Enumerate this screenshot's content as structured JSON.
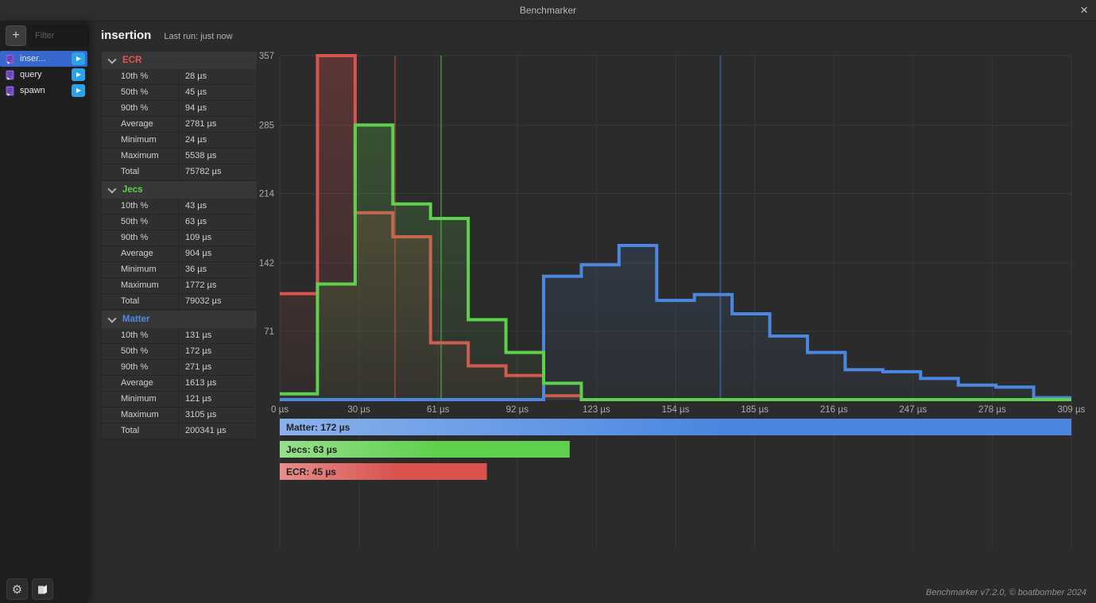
{
  "window": {
    "title": "Benchmarker",
    "close_glyph": "×"
  },
  "sidebar": {
    "add_label": "+",
    "filter_placeholder": "Filter",
    "items": [
      {
        "label": "inser...",
        "selected": true
      },
      {
        "label": "query",
        "selected": false
      },
      {
        "label": "spawn",
        "selected": false
      }
    ]
  },
  "header": {
    "title": "insertion",
    "last_run": "Last run: just now"
  },
  "stats": {
    "groups": [
      {
        "name": "ECR",
        "color": "#e25652",
        "rows": [
          [
            "10th %",
            "28 µs"
          ],
          [
            "50th %",
            "45 µs"
          ],
          [
            "90th %",
            "94 µs"
          ],
          [
            "Average",
            "2781 µs"
          ],
          [
            "Minimum",
            "24 µs"
          ],
          [
            "Maximum",
            "5538 µs"
          ],
          [
            "Total",
            "75782 µs"
          ]
        ]
      },
      {
        "name": "Jecs",
        "color": "#5ed04d",
        "rows": [
          [
            "10th %",
            "43 µs"
          ],
          [
            "50th %",
            "63 µs"
          ],
          [
            "90th %",
            "109 µs"
          ],
          [
            "Average",
            "904 µs"
          ],
          [
            "Minimum",
            "36 µs"
          ],
          [
            "Maximum",
            "1772 µs"
          ],
          [
            "Total",
            "79032 µs"
          ]
        ]
      },
      {
        "name": "Matter",
        "color": "#4f8ae0",
        "rows": [
          [
            "10th %",
            "131 µs"
          ],
          [
            "50th %",
            "172 µs"
          ],
          [
            "90th %",
            "271 µs"
          ],
          [
            "Average",
            "1613 µs"
          ],
          [
            "Minimum",
            "121 µs"
          ],
          [
            "Maximum",
            "3105 µs"
          ],
          [
            "Total",
            "200341 µs"
          ]
        ]
      }
    ]
  },
  "chart_data": {
    "type": "histogram-step",
    "x_unit": "µs",
    "xlim": [
      0,
      309
    ],
    "ylim": [
      0,
      357
    ],
    "bin_width_us": 14.714,
    "x_ticks": [
      {
        "value": 0,
        "label": "0 µs"
      },
      {
        "value": 30.9,
        "label": "30 µs"
      },
      {
        "value": 61.8,
        "label": "61 µs"
      },
      {
        "value": 92.7,
        "label": "92 µs"
      },
      {
        "value": 123.6,
        "label": "123 µs"
      },
      {
        "value": 154.5,
        "label": "154 µs"
      },
      {
        "value": 185.4,
        "label": "185 µs"
      },
      {
        "value": 216.3,
        "label": "216 µs"
      },
      {
        "value": 247.2,
        "label": "247 µs"
      },
      {
        "value": 278.1,
        "label": "278 µs"
      },
      {
        "value": 309,
        "label": "309 µs"
      }
    ],
    "y_ticks": [
      {
        "value": 71,
        "label": "71"
      },
      {
        "value": 142,
        "label": "142"
      },
      {
        "value": 214,
        "label": "214"
      },
      {
        "value": 285,
        "label": "285"
      },
      {
        "value": 357,
        "label": "357"
      }
    ],
    "series": [
      {
        "name": "ECR",
        "color": "#d9534f",
        "median_us": 45,
        "counts": [
          110,
          357,
          194,
          169,
          59,
          35,
          25,
          4,
          0,
          0,
          0,
          0,
          0,
          0,
          0,
          0,
          0,
          0,
          0,
          0,
          0
        ]
      },
      {
        "name": "Matter",
        "color": "#4b87e0",
        "median_us": 172,
        "counts": [
          0,
          0,
          0,
          0,
          0,
          0,
          0,
          128,
          140,
          160,
          103,
          109,
          89,
          66,
          49,
          31,
          29,
          22,
          15,
          13,
          2
        ]
      },
      {
        "name": "Jecs",
        "color": "#5ed04d",
        "median_us": 63,
        "counts": [
          6,
          120,
          285,
          203,
          188,
          83,
          49,
          17,
          0,
          0,
          0,
          0,
          0,
          0,
          0,
          0,
          0,
          0,
          0,
          0,
          0
        ]
      }
    ],
    "legend": [
      {
        "series": "Matter",
        "label": "Matter: 172 µs",
        "value_us": 172
      },
      {
        "series": "Jecs",
        "label": "Jecs: 63 µs",
        "value_us": 63
      },
      {
        "series": "ECR",
        "label": "ECR: 45 µs",
        "value_us": 45
      }
    ],
    "bar_text_color": "#222222"
  },
  "footer": {
    "credit": "Benchmarker v7.2.0, © boatbomber 2024"
  }
}
